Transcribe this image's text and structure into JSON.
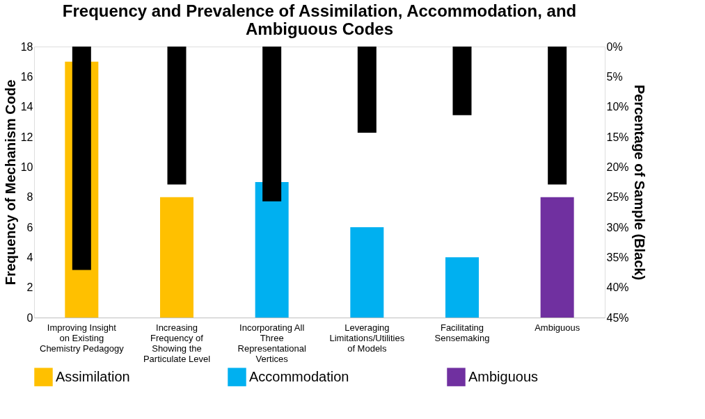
{
  "chart_data": {
    "type": "bar",
    "title": "Frequency and Prevalence of Assimilation, Accommodation, and Ambiguous Codes",
    "ylabel": "Frequency of Mechanism Code",
    "y2label": "Percentage of Sample (Black)",
    "categories": [
      "Improving Insight on Existing Chemistry Pedagogy",
      "Increasing Frequency of Showing the Particulate Level",
      "Incorporating All Three Representational Vertices",
      "Leveraging Limitations/Utilities of Models",
      "Facilitating Sensemaking",
      "Ambiguous"
    ],
    "series": [
      {
        "name": "Assimilation",
        "color": "#ffc000",
        "values": [
          17,
          8,
          null,
          null,
          null,
          null
        ]
      },
      {
        "name": "Accommodation",
        "color": "#00b0f0",
        "values": [
          null,
          null,
          9,
          6,
          4,
          null
        ]
      },
      {
        "name": "Ambiguous",
        "color": "#7030a0",
        "values": [
          null,
          null,
          null,
          null,
          null,
          8
        ]
      },
      {
        "color": "#000000",
        "axis": "y2",
        "values": [
          37.1,
          22.9,
          25.7,
          14.3,
          11.4,
          22.9
        ]
      }
    ],
    "ylim": [
      0,
      18
    ],
    "yticks": [
      0,
      2,
      4,
      6,
      8,
      10,
      12,
      14,
      16,
      18
    ],
    "y2lim": [
      45,
      0
    ],
    "y2ticks": [
      {
        "value": 0,
        "label": "0%"
      },
      {
        "value": 5,
        "label": "5%"
      },
      {
        "value": 10,
        "label": "10%"
      },
      {
        "value": 15,
        "label": "15%"
      },
      {
        "value": 20,
        "label": "20%"
      },
      {
        "value": 25,
        "label": "25%"
      },
      {
        "value": 30,
        "label": "30%"
      },
      {
        "value": 35,
        "label": "35%"
      },
      {
        "value": 40,
        "label": "40%"
      },
      {
        "value": 45,
        "label": "45%"
      }
    ],
    "grid": false,
    "legend": "bottom"
  }
}
